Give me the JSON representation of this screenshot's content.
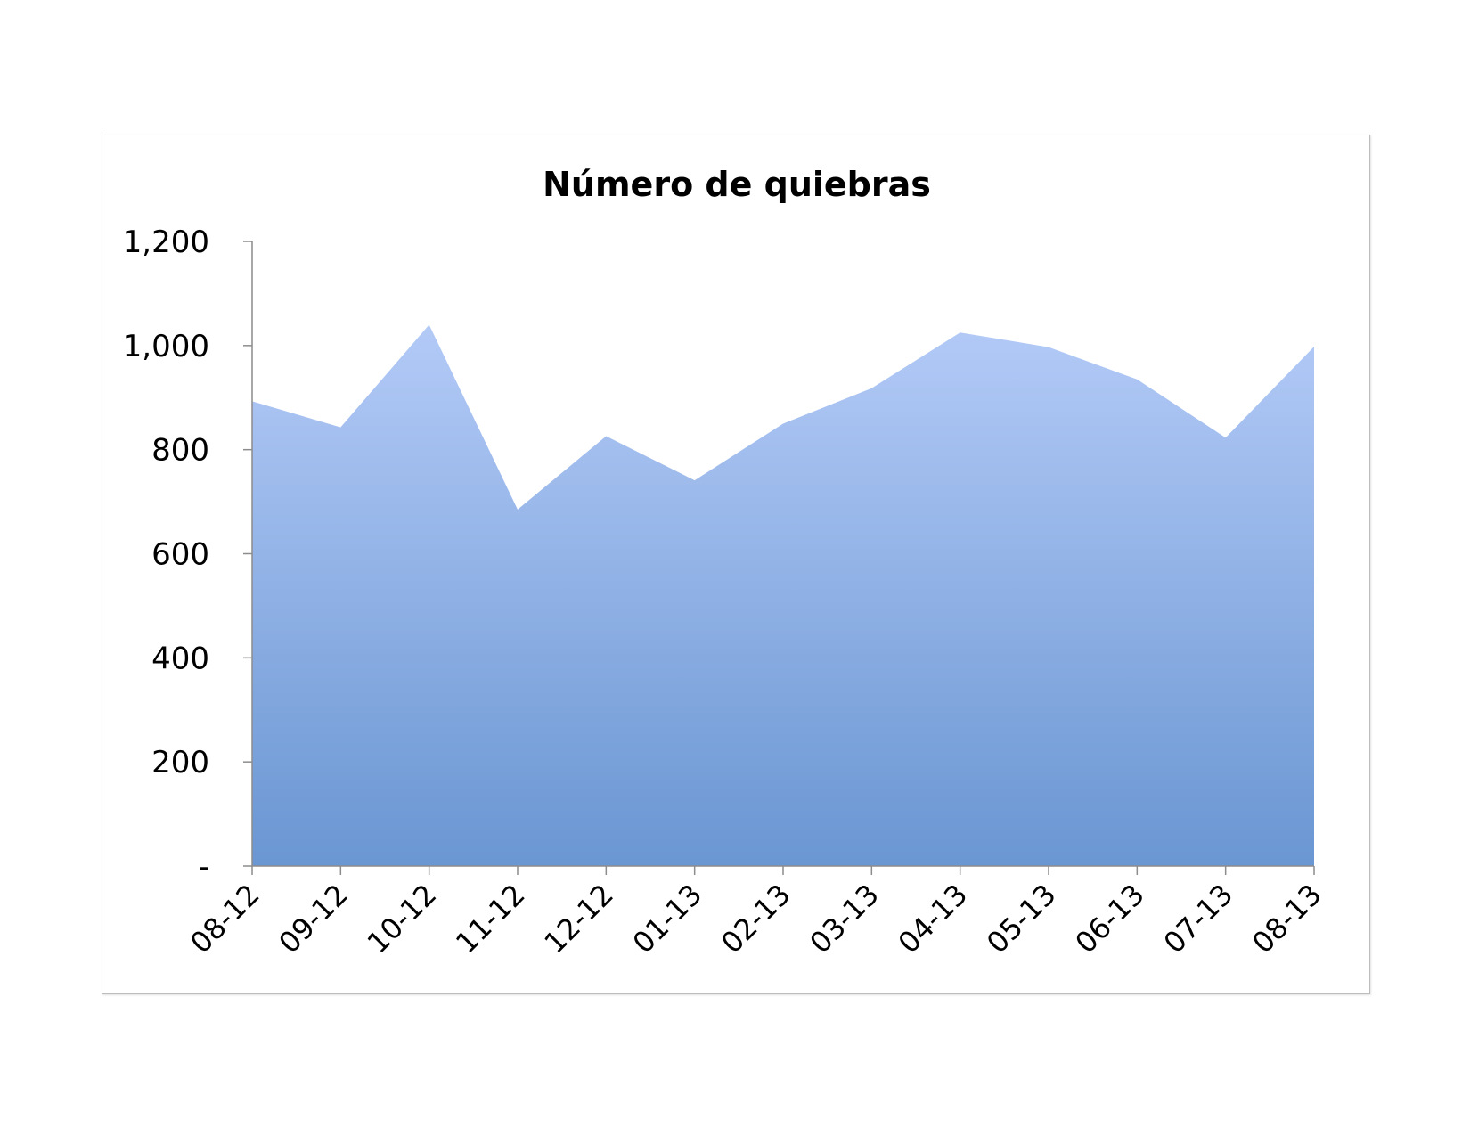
{
  "chart_data": {
    "type": "area",
    "title": "Número de quiebras",
    "xlabel": "",
    "ylabel": "",
    "categories": [
      "08-12",
      "09-12",
      "10-12",
      "11-12",
      "12-12",
      "01-13",
      "02-13",
      "03-13",
      "04-13",
      "05-13",
      "06-13",
      "07-13",
      "08-13"
    ],
    "series": [
      {
        "values": [
          893,
          843,
          1040,
          685,
          826,
          741,
          850,
          918,
          1025,
          997,
          935,
          823,
          998
        ]
      }
    ],
    "ylim": [
      0,
      1200
    ],
    "yticks": [
      {
        "value": 0,
        "label": "-"
      },
      {
        "value": 200,
        "label": "200"
      },
      {
        "value": 400,
        "label": "400"
      },
      {
        "value": 600,
        "label": "600"
      },
      {
        "value": 800,
        "label": "800"
      },
      {
        "value": 1000,
        "label": "1,000"
      },
      {
        "value": 1200,
        "label": "1,200"
      }
    ],
    "grid": false,
    "legend": "none",
    "colors": {
      "fill_top": "#b3caf7",
      "fill_bottom": "#6a96d2",
      "axis": "#8c8c8c"
    }
  }
}
